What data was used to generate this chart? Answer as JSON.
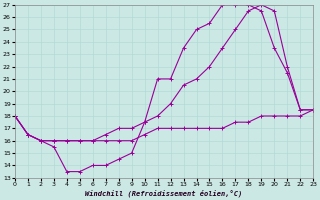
{
  "xlabel": "Windchill (Refroidissement éolien,°C)",
  "background_color": "#cce8e4",
  "line_color": "#990099",
  "grid_color": "#aad8d4",
  "xlim": [
    0,
    23
  ],
  "ylim": [
    13,
    27
  ],
  "xticks": [
    0,
    1,
    2,
    3,
    4,
    5,
    6,
    7,
    8,
    9,
    10,
    11,
    12,
    13,
    14,
    15,
    16,
    17,
    18,
    19,
    20,
    21,
    22,
    23
  ],
  "yticks": [
    13,
    14,
    15,
    16,
    17,
    18,
    19,
    20,
    21,
    22,
    23,
    24,
    25,
    26,
    27
  ],
  "curve1_x": [
    0,
    1,
    2,
    3,
    4,
    5,
    6,
    7,
    8,
    9,
    10,
    11,
    12,
    13,
    14,
    15,
    16,
    17,
    18,
    19,
    20,
    21,
    22,
    23
  ],
  "curve1_y": [
    18,
    16.5,
    16,
    15.5,
    13.5,
    13.5,
    14,
    14,
    14.5,
    15,
    17.5,
    21,
    21,
    23.5,
    25,
    25.5,
    27,
    27,
    27,
    26.5,
    23.5,
    21.5,
    18.5,
    18.5
  ],
  "curve2_x": [
    0,
    1,
    2,
    3,
    4,
    5,
    6,
    7,
    8,
    9,
    10,
    11,
    12,
    13,
    14,
    15,
    16,
    17,
    18,
    19,
    20,
    21,
    22,
    23
  ],
  "curve2_y": [
    18,
    16.5,
    16,
    16,
    16,
    16,
    16,
    16.5,
    17,
    17,
    17.5,
    18,
    19,
    20.5,
    21,
    22,
    23.5,
    25,
    26.5,
    27,
    26.5,
    22,
    18.5,
    18.5
  ],
  "curve3_x": [
    0,
    1,
    2,
    3,
    4,
    5,
    6,
    7,
    8,
    9,
    10,
    11,
    12,
    13,
    14,
    15,
    16,
    17,
    18,
    19,
    20,
    21,
    22,
    23
  ],
  "curve3_y": [
    18,
    16.5,
    16,
    16,
    16,
    16,
    16,
    16,
    16,
    16,
    16.5,
    17,
    17,
    17,
    17,
    17,
    17,
    17.5,
    17.5,
    18,
    18,
    18,
    18,
    18.5
  ]
}
